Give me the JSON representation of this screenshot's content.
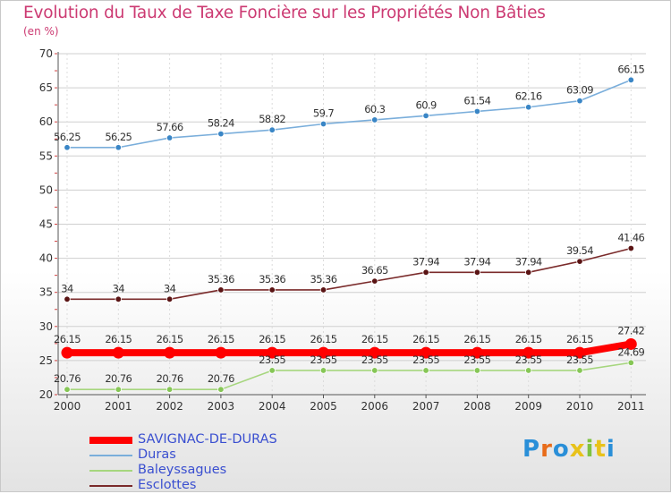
{
  "title": "Evolution du Taux de Taxe Foncière sur les Propriétés Non Bâties",
  "unit_label": "(en %)",
  "logo_text": "Proxiti",
  "chart_data": {
    "type": "line",
    "title": "Evolution du Taux de Taxe Foncière sur les Propriétés Non Bâties",
    "ylabel": "(en %)",
    "xlabel": "",
    "categories": [
      "2000",
      "2001",
      "2002",
      "2003",
      "2004",
      "2005",
      "2006",
      "2007",
      "2008",
      "2009",
      "2010",
      "2011"
    ],
    "ylim": [
      20,
      70
    ],
    "yticks": [
      "20",
      "25",
      "30",
      "35",
      "40",
      "45",
      "50",
      "55",
      "60",
      "65",
      "70"
    ],
    "grid": true,
    "series": [
      {
        "name": "Duras",
        "color": "#7aaedb",
        "marker_color": "#3a86c6",
        "values": [
          56.25,
          56.25,
          57.66,
          58.24,
          58.82,
          59.7,
          60.3,
          60.9,
          61.54,
          62.16,
          63.09,
          66.15
        ],
        "labels": [
          "56.25",
          "56.25",
          "57.66",
          "58.24",
          "58.82",
          "59.7",
          "60.3",
          "60.9",
          "61.54",
          "62.16",
          "63.09",
          "66.15"
        ]
      },
      {
        "name": "Esclottes",
        "color": "#7a2a2a",
        "marker_color": "#5a1414",
        "values": [
          34,
          34,
          34,
          35.36,
          35.36,
          35.36,
          36.65,
          37.94,
          37.94,
          37.94,
          39.54,
          41.46
        ],
        "labels": [
          "34",
          "34",
          "34",
          "35.36",
          "35.36",
          "35.36",
          "36.65",
          "37.94",
          "37.94",
          "37.94",
          "39.54",
          "41.46"
        ]
      },
      {
        "name": "Baleyssagues",
        "color": "#a6d67e",
        "marker_color": "#86c656",
        "values": [
          20.76,
          20.76,
          20.76,
          20.76,
          23.55,
          23.55,
          23.55,
          23.55,
          23.55,
          23.55,
          23.55,
          24.69
        ],
        "labels": [
          "20.76",
          "20.76",
          "20.76",
          "20.76",
          "23.55",
          "23.55",
          "23.55",
          "23.55",
          "23.55",
          "23.55",
          "23.55",
          "24.69"
        ]
      },
      {
        "name": "SAVIGNAC-DE-DURAS",
        "color": "#ff0000",
        "marker_color": "#ff0000",
        "values": [
          26.15,
          26.15,
          26.15,
          26.15,
          26.15,
          26.15,
          26.15,
          26.15,
          26.15,
          26.15,
          26.15,
          27.42
        ],
        "labels": [
          "26.15",
          "26.15",
          "26.15",
          "26.15",
          "26.15",
          "26.15",
          "26.15",
          "26.15",
          "26.15",
          "26.15",
          "26.15",
          "27.42"
        ]
      }
    ],
    "legend": [
      "SAVIGNAC-DE-DURAS",
      "Duras",
      "Baleyssagues",
      "Esclottes"
    ]
  }
}
